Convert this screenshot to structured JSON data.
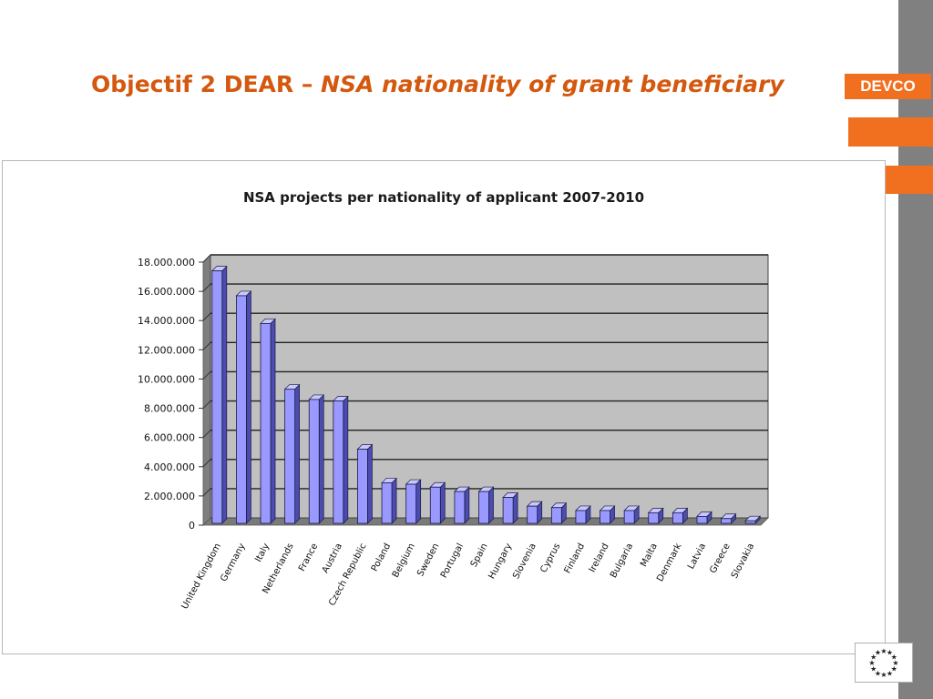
{
  "slide": {
    "title_main": "Objectif 2 DEAR – ",
    "title_italic": "NSA nationality of grant beneficiary",
    "devco_label": "DEVCO"
  },
  "colors": {
    "accent": "#f07020",
    "title": "#d4580e",
    "side_bar": "#808080",
    "bar_fill": "#9999ff",
    "plot_area": "#c0c0c0"
  },
  "icons": {
    "eu_logo": "eu-stars-icon"
  },
  "chart_data": {
    "type": "bar",
    "title": "NSA projects per nationality of applicant 2007-2010",
    "xlabel": "",
    "ylabel": "",
    "ylim": [
      0,
      18000000
    ],
    "yticks": [
      "0",
      "2.000.000",
      "4.000.000",
      "6.000.000",
      "8.000.000",
      "10.000.000",
      "12.000.000",
      "14.000.000",
      "16.000.000",
      "18.000.000"
    ],
    "grid": true,
    "legend": "none",
    "categories": [
      "United Kingdom",
      "Germany",
      "Italy",
      "Netherlands",
      "France",
      "Austria",
      "Czech Republic",
      "Poland",
      "Belgium",
      "Sweden",
      "Portugal",
      "Spain",
      "Hungary",
      "Slovenia",
      "Cyprus",
      "Finland",
      "Ireland",
      "Bulgaria",
      "Malta",
      "Denmark",
      "Latvia",
      "Greece",
      "Slovakia"
    ],
    "values": [
      17400000,
      15700000,
      13800000,
      9300000,
      8600000,
      8500000,
      5200000,
      2900000,
      2800000,
      2600000,
      2300000,
      2300000,
      1900000,
      1300000,
      1200000,
      1000000,
      1000000,
      1000000,
      850000,
      850000,
      600000,
      450000,
      300000
    ]
  }
}
